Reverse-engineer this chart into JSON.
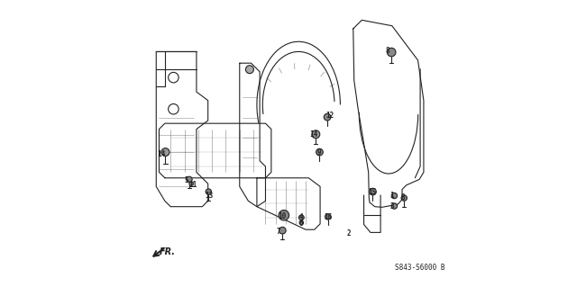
{
  "background_color": "#ffffff",
  "part_number": "S843-S6000 B",
  "direction_label": "FR.",
  "figsize": [
    6.4,
    3.19
  ],
  "dpi": 100,
  "line_color": "#222222",
  "default_lw": 0.8
}
